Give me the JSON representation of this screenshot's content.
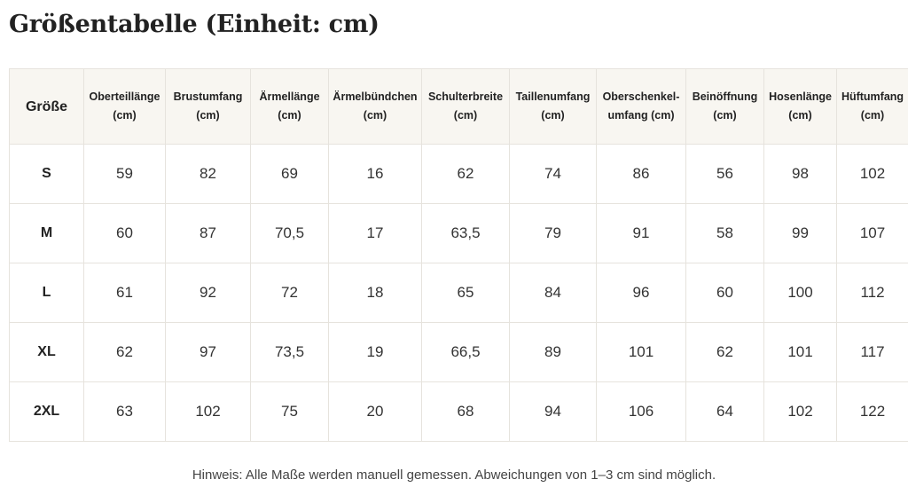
{
  "title": "Größentabelle (Einheit: cm)",
  "table": {
    "corner_label": "Größe",
    "columns": [
      [
        "Oberteillänge",
        "(cm)"
      ],
      [
        "Brustumfang",
        "(cm)"
      ],
      [
        "Ärmellänge",
        "(cm)"
      ],
      [
        "Ärmelbündchen",
        "(cm)"
      ],
      [
        "Schulterbreite",
        "(cm)"
      ],
      [
        "Taillenumfang",
        "(cm)"
      ],
      [
        "Oberschenkel-",
        "umfang (cm)"
      ],
      [
        "Beinöffnung",
        "(cm)"
      ],
      [
        "Hosenlänge",
        "(cm)"
      ],
      [
        "Hüftumfang",
        "(cm)"
      ]
    ],
    "rows": [
      {
        "size": "S",
        "values": [
          "59",
          "82",
          "69",
          "16",
          "62",
          "74",
          "86",
          "56",
          "98",
          "102"
        ]
      },
      {
        "size": "M",
        "values": [
          "60",
          "87",
          "70,5",
          "17",
          "63,5",
          "79",
          "91",
          "58",
          "99",
          "107"
        ]
      },
      {
        "size": "L",
        "values": [
          "61",
          "92",
          "72",
          "18",
          "65",
          "84",
          "96",
          "60",
          "100",
          "112"
        ]
      },
      {
        "size": "XL",
        "values": [
          "62",
          "97",
          "73,5",
          "19",
          "66,5",
          "89",
          "101",
          "62",
          "101",
          "117"
        ]
      },
      {
        "size": "2XL",
        "values": [
          "63",
          "102",
          "75",
          "20",
          "68",
          "94",
          "106",
          "64",
          "102",
          "122"
        ]
      }
    ]
  },
  "note": "Hinweis: Alle Maße werden manuell gemessen. Abweichungen von 1–3 cm sind möglich."
}
